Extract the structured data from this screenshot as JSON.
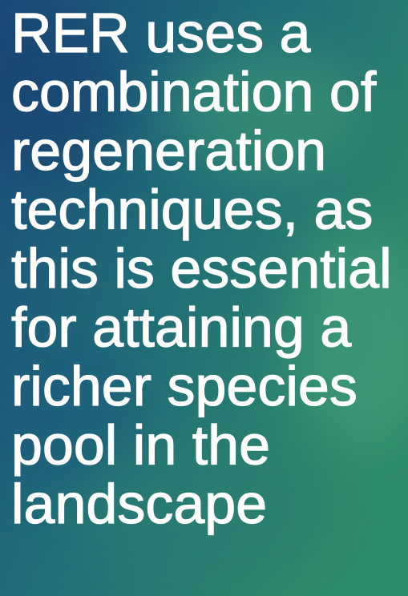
{
  "text": {
    "lines": [
      "RER uses a",
      "combination of",
      "regeneration",
      "techniques, as",
      "this is essential",
      "for attaining a",
      "richer species",
      "pool in the",
      "landscape"
    ]
  }
}
